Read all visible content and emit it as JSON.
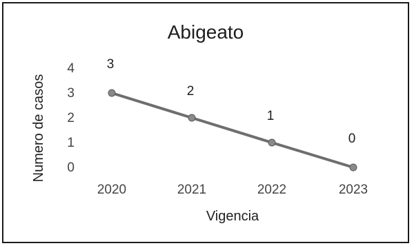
{
  "chart_data": {
    "type": "line",
    "title": "Abigeato",
    "xlabel": "Vigencia",
    "ylabel": "Numero de casos",
    "categories": [
      "2020",
      "2021",
      "2022",
      "2023"
    ],
    "series": [
      {
        "values": [
          3,
          2,
          1,
          0
        ]
      }
    ],
    "data_labels": [
      "3",
      "2",
      "1",
      "0"
    ],
    "yticks": [
      "0",
      "1",
      "2",
      "3",
      "4"
    ],
    "ylim": [
      0,
      4
    ],
    "grid": false,
    "legend": "none",
    "colors": {
      "line": "#6e6e6e",
      "marker": "#8a8a8a",
      "text": "#1e1e1e",
      "border": "#1a1a1a"
    }
  }
}
